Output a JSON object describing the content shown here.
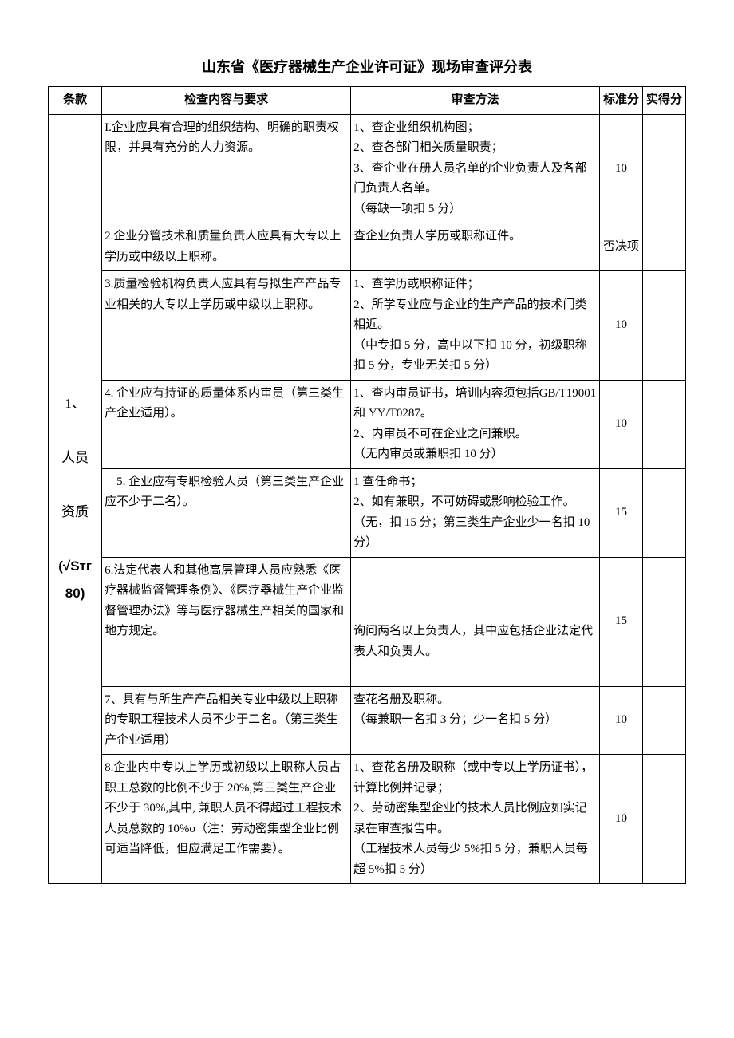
{
  "title": "山东省《医疗器械生产企业许可证》现场审查评分表",
  "columns": {
    "clause": "条款",
    "content": "检查内容与要求",
    "method": "审查方法",
    "std_score": "标准分",
    "actual_score": "实得分"
  },
  "clause_label": "1、\n\n人员\n\n资质\n\n(√Sтг\n80)",
  "rows": [
    {
      "content": "I.企业应具有合理的组织结构、明确的职责权限，并具有充分的人力资源。",
      "method": "1、查企业组织机构图；\n2、查各部门相关质量职责；\n3、查企业在册人员名单的企业负责人及各部门负责人名单。\n（每缺一项扣 5 分）",
      "score": "10"
    },
    {
      "content": "2.企业分管技术和质量负责人应具有大专以上学历或中级以上职称。",
      "method": "查企业负责人学历或职称证件。",
      "score": "否决项"
    },
    {
      "content": "3.质量检验机构负责人应具有与拟生产产品专业相关的大专以上学历或中级以上职称。",
      "method": "1、查学历或职称证件；\n2、所学专业应与企业的生产产品的技术门类相近。\n（中专扣 5 分，高中以下扣 10 分，初级职称扣 5 分，专业无关扣 5 分）",
      "score": "10"
    },
    {
      "content": "4. 企业应有持证的质量体系内审员（第三类生产企业适用）。",
      "method": "1、查内审员证书，培训内容须包括GB/T19001 和 YY/T0287。\n2、内审员不可在企业之间兼职。\n（无内审员或兼职扣 10 分）",
      "score": "10"
    },
    {
      "content": "　5. 企业应有专职检验人员（第三类生产企业应不少于二名）。",
      "method": "1 查任命书；\n2、如有兼职，不可妨碍或影响检验工作。\n（无，扣 15 分；第三类生产企业少一名扣 10 分）",
      "score": "15"
    },
    {
      "content": "6.法定代表人和其他高层管理人员应熟悉《医疗器械监督管理条例》、《医疗器械生产企业监督管理办法》等与医疗器械生产相关的国家和地方规定。\n\n\n",
      "method": "\n\n\n询问两名以上负责人，其中应包括企业法定代表人和负责人。",
      "score": "15"
    },
    {
      "content": "7、具有与所生产产品相关专业中级以上职称的专职工程技术人员不少于二名。（第三类生产企业适用）\n",
      "method": "查花名册及职称。\n（每兼职一名扣 3 分；少一名扣 5 分）",
      "score": "10"
    },
    {
      "content": "8.企业内中专以上学历或初级以上职称人员占职工总数的比例不少于 20%,第三类生产企业不少于 30%,其中, 兼职人员不得超过工程技术人员总数的 10%o（注：劳动密集型企业比例可适当降低，但应满足工作需要）。",
      "method": "1、查花名册及职称（或中专以上学历证书），计算比例并记录；\n2、劳动密集型企业的技术人员比例应如实记录在审查报告中。\n（工程技术人员每少 5%扣 5 分，兼职人员每超 5%扣 5 分）",
      "score": "10"
    }
  ]
}
